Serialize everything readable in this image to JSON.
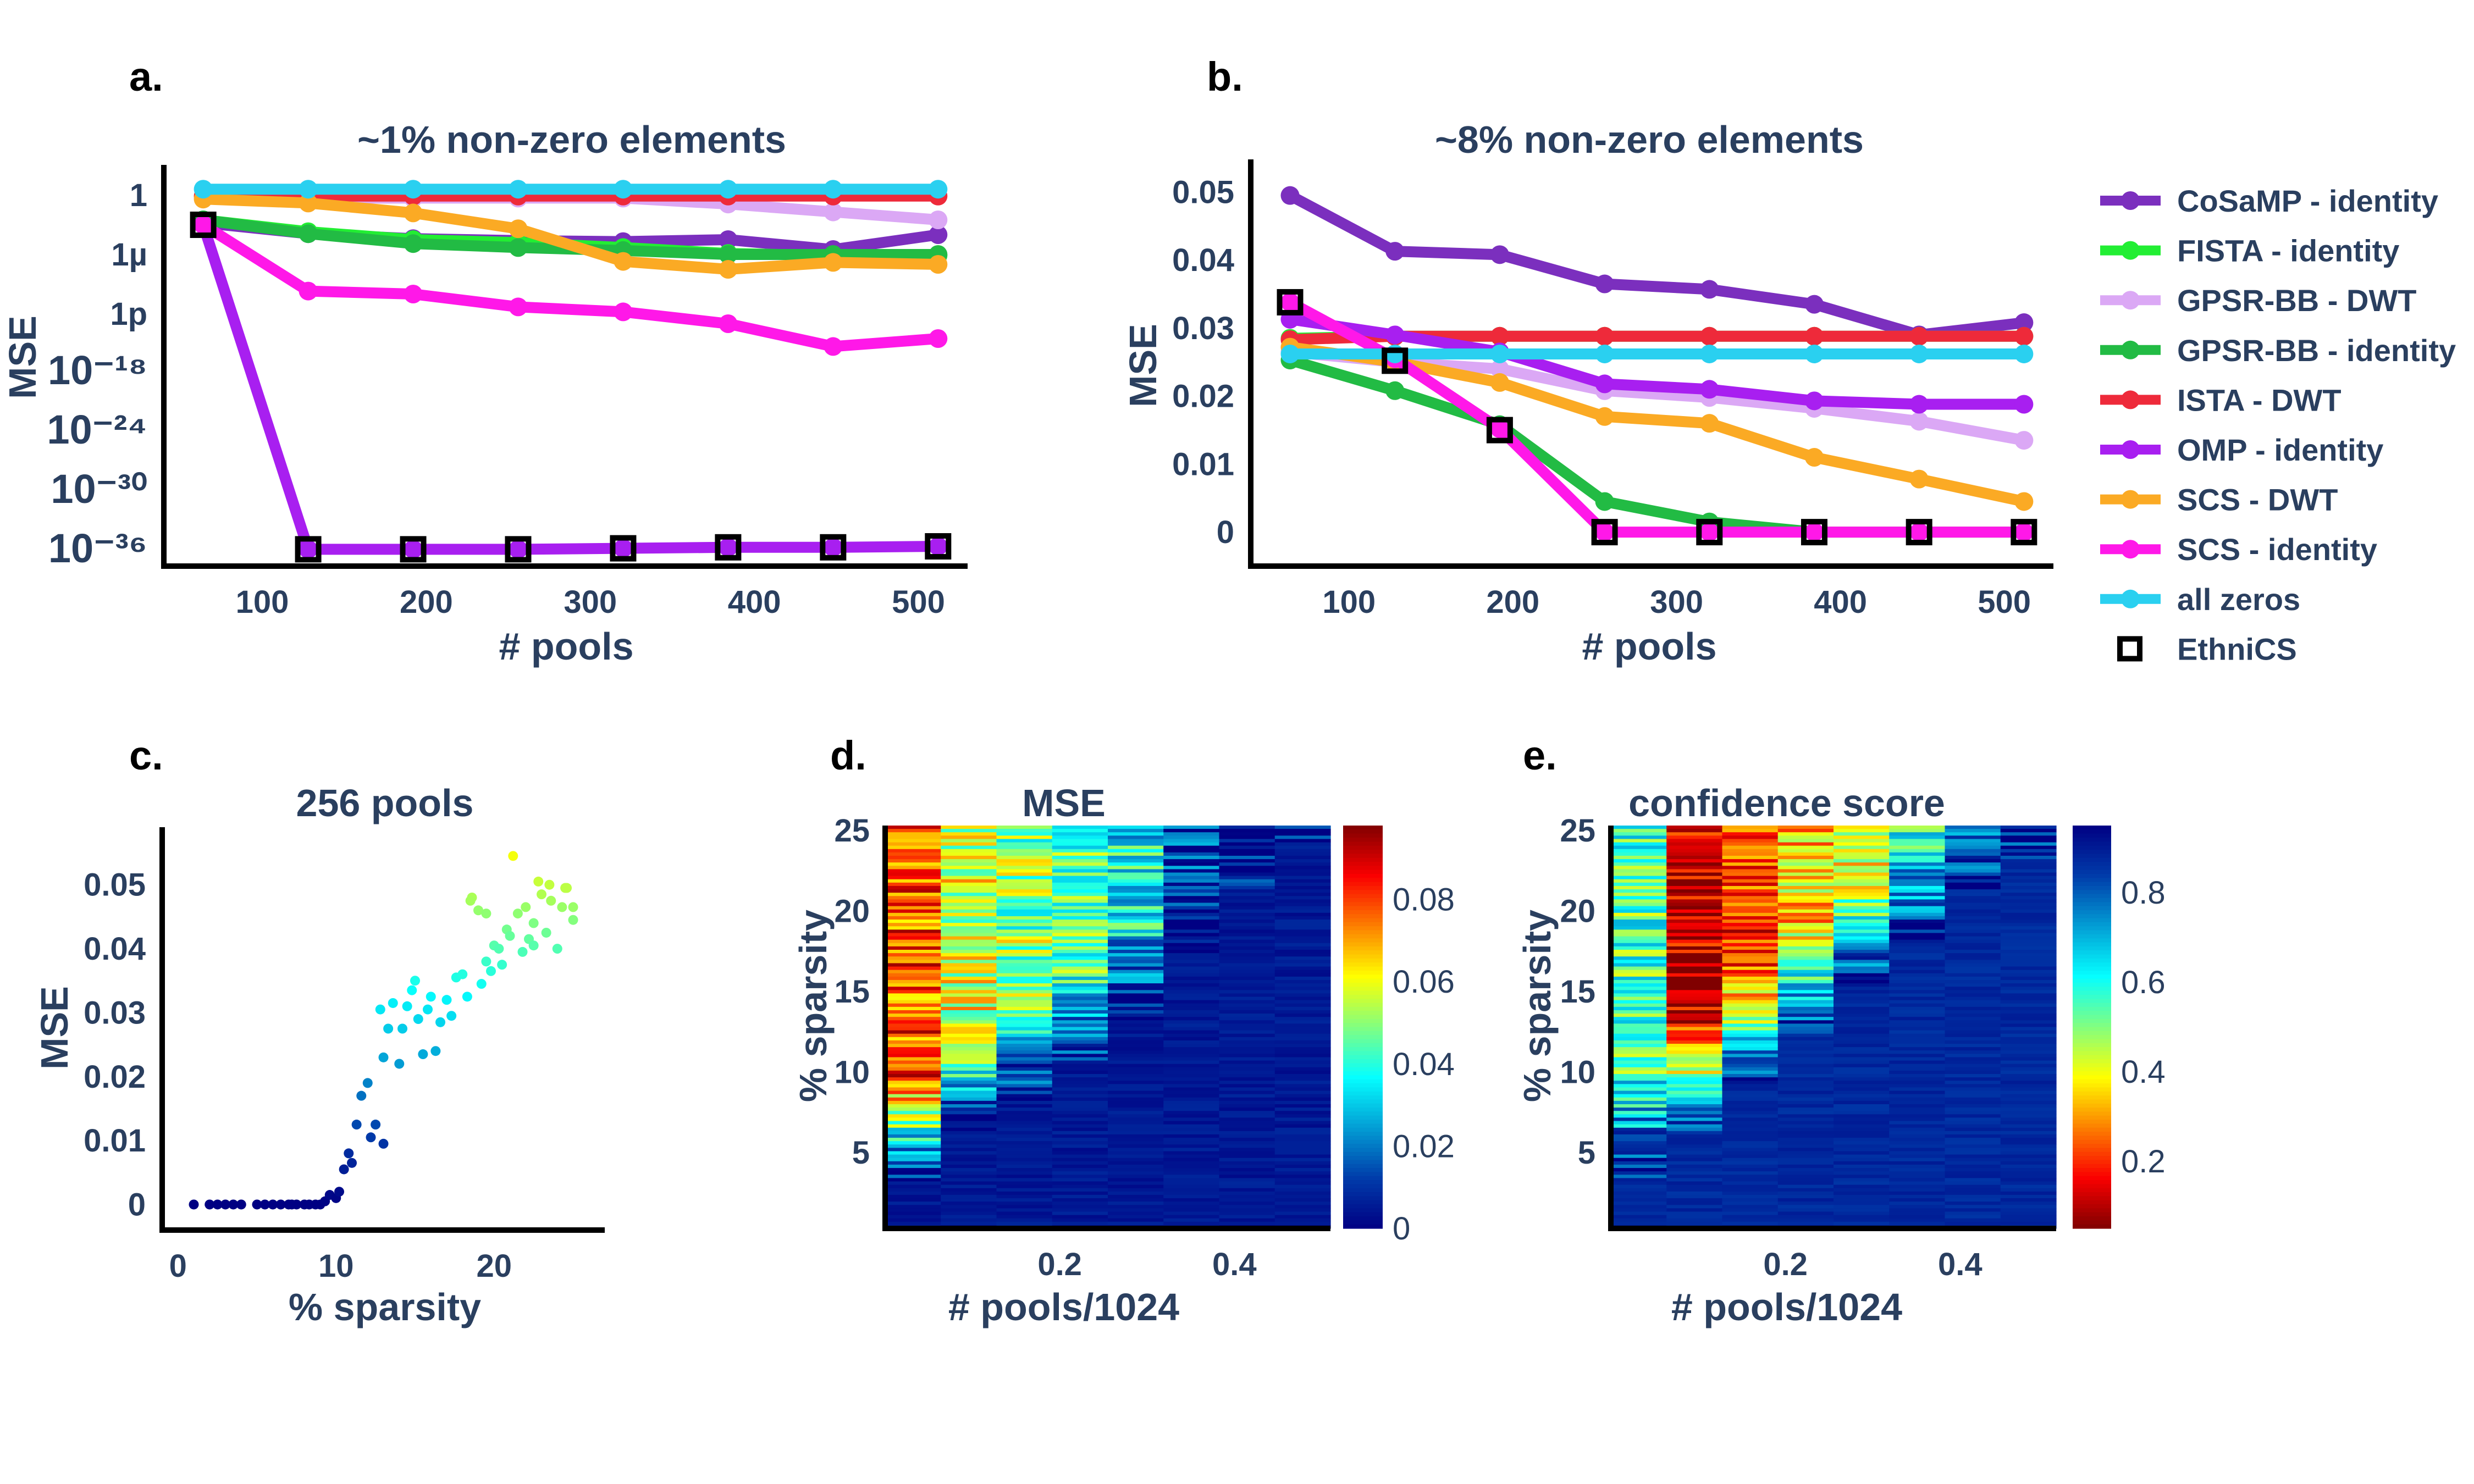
{
  "chart_data": [
    {
      "id": "a",
      "type": "line",
      "panel_label": "a.",
      "title": "~1% non-zero elements",
      "xlabel": "# pools",
      "ylabel": "MSE",
      "yscale": "log",
      "x": [
        64,
        128,
        192,
        256,
        320,
        384,
        448,
        512
      ],
      "xticks": [
        100,
        200,
        300,
        400,
        500
      ],
      "yticks_exp": [
        0,
        -6,
        -12,
        -18,
        -24,
        -30,
        -36
      ],
      "ytick_labels": [
        "1",
        "1µ",
        "1p",
        "10⁻¹⁸",
        "10⁻²⁴",
        "10⁻³⁰",
        "10⁻³⁶"
      ],
      "ylim_exp": [
        -37.5,
        2.5
      ],
      "series": [
        {
          "name": "CoSaMP - identity",
          "log10": [
            -2.8,
            -3.9,
            -4.4,
            -4.6,
            -4.7,
            -4.5,
            -5.5,
            -4.0
          ]
        },
        {
          "name": "FISTA - identity",
          "log10": [
            -2.5,
            -3.7,
            -4.5,
            -4.8,
            -5.3,
            -5.9,
            -6.1,
            -6.1
          ]
        },
        {
          "name": "GPSR-BB - DWT",
          "log10": [
            -0.3,
            -0.3,
            -0.3,
            -0.3,
            -0.3,
            -0.9,
            -1.7,
            -2.5
          ]
        },
        {
          "name": "GPSR-BB - identity",
          "log10": [
            -2.5,
            -3.9,
            -4.9,
            -5.3,
            -5.6,
            -6.0,
            -6.0,
            -6.0
          ]
        },
        {
          "name": "ISTA - DWT",
          "log10": [
            -0.1,
            -0.1,
            -0.1,
            -0.1,
            -0.1,
            -0.1,
            -0.1,
            -0.1
          ]
        },
        {
          "name": "OMP - identity",
          "log10": [
            -3.0,
            -35.8,
            -35.8,
            -35.8,
            -35.7,
            -35.6,
            -35.6,
            -35.5
          ]
        },
        {
          "name": "SCS - DWT",
          "log10": [
            -0.4,
            -0.8,
            -1.8,
            -3.4,
            -6.7,
            -7.5,
            -6.8,
            -7.0
          ]
        },
        {
          "name": "SCS - identity",
          "log10": [
            -3.0,
            -9.7,
            -10.0,
            -11.3,
            -11.8,
            -13.0,
            -15.3,
            -14.5
          ]
        },
        {
          "name": "all zeros",
          "log10": [
            0.6,
            0.6,
            0.6,
            0.6,
            0.6,
            0.6,
            0.6,
            0.6
          ]
        },
        {
          "name": "EthniCS",
          "log10": [
            -3.0,
            -35.8,
            -35.8,
            -35.8,
            -35.7,
            -35.6,
            -35.6,
            -35.5
          ]
        }
      ]
    },
    {
      "id": "b",
      "type": "line",
      "panel_label": "b.",
      "title": "~8% non-zero elements",
      "xlabel": "# pools",
      "ylabel": "MSE",
      "x": [
        64,
        128,
        192,
        256,
        320,
        384,
        448,
        512
      ],
      "xticks": [
        100,
        200,
        300,
        400,
        500
      ],
      "yticks": [
        0,
        0.01,
        0.02,
        0.03,
        0.04,
        0.05
      ],
      "ytick_labels": [
        "0",
        "0.01",
        "0.02",
        "0.03",
        "0.04",
        "0.05"
      ],
      "ylim": [
        -0.005,
        0.054
      ],
      "series": [
        {
          "name": "CoSaMP - identity",
          "values": [
            0.0495,
            0.0413,
            0.0408,
            0.0365,
            0.0357,
            0.0335,
            0.029,
            0.0308
          ]
        },
        {
          "name": "FISTA - identity",
          "values": [
            0.0285,
            0.0288,
            0.0288,
            0.0288,
            0.0288,
            0.0288,
            0.0288,
            0.0288
          ]
        },
        {
          "name": "GPSR-BB - DWT",
          "values": [
            0.0265,
            0.025,
            0.024,
            0.0208,
            0.0198,
            0.0182,
            0.0163,
            0.0135
          ]
        },
        {
          "name": "GPSR-BB - identity",
          "values": [
            0.0253,
            0.0208,
            0.0158,
            0.0045,
            0.0015,
            0.0,
            0.0,
            0.0
          ]
        },
        {
          "name": "ISTA - DWT",
          "values": [
            0.0283,
            0.0288,
            0.0288,
            0.0288,
            0.0288,
            0.0288,
            0.0288,
            0.0288
          ]
        },
        {
          "name": "OMP - identity",
          "values": [
            0.0313,
            0.029,
            0.0265,
            0.0218,
            0.021,
            0.0193,
            0.0188,
            0.0188
          ]
        },
        {
          "name": "SCS - DWT",
          "values": [
            0.0272,
            0.025,
            0.022,
            0.017,
            0.016,
            0.011,
            0.0078,
            0.0045
          ]
        },
        {
          "name": "SCS - identity",
          "values": [
            0.0338,
            0.0255,
            0.0152,
            0.0,
            0.0,
            0.0,
            0.0,
            0.0
          ]
        },
        {
          "name": "all zeros",
          "values": [
            0.0262,
            0.0262,
            0.0262,
            0.0262,
            0.0262,
            0.0262,
            0.0262,
            0.0262
          ]
        },
        {
          "name": "EthniCS",
          "values": [
            0.0338,
            0.0252,
            0.015,
            0.0,
            0.0,
            0.0,
            0.0,
            0.0
          ]
        }
      ]
    },
    {
      "id": "c",
      "type": "scatter",
      "panel_label": "c.",
      "title": "256 pools",
      "xlabel": "% sparsity",
      "ylabel": "MSE",
      "xticks": [
        0,
        10,
        20
      ],
      "yticks": [
        0,
        0.01,
        0.02,
        0.03,
        0.04,
        0.05
      ],
      "ytick_labels": [
        "0",
        "0.01",
        "0.02",
        "0.03",
        "0.04",
        "0.05"
      ],
      "xlim": [
        -1,
        27
      ],
      "ylim": [
        -0.004,
        0.059
      ],
      "x": [
        1,
        2,
        2.5,
        3,
        3.5,
        4,
        5,
        5.5,
        6,
        6.5,
        7,
        7.2,
        7.5,
        8,
        8.3,
        8.7,
        9,
        9.3,
        9.6,
        10,
        10.2,
        10.5,
        10.8,
        11,
        11.3,
        11.6,
        12,
        12.2,
        12.5,
        12.8,
        13,
        13,
        13.3,
        13.6,
        14,
        14.2,
        14.5,
        14.8,
        15,
        15.2,
        15.5,
        15.8,
        16,
        16.3,
        16.6,
        17,
        17.3,
        17.6,
        18,
        18.3,
        18.6,
        19,
        19.2,
        19.5,
        19.8,
        20,
        20.3,
        20.5,
        20.8,
        21,
        21.2,
        21.5,
        21.8,
        22,
        22.2,
        22.5,
        22.8,
        23,
        23.3,
        23.6,
        24,
        24.3,
        24.6,
        25,
        25,
        18.5,
        19.5,
        22.5,
        23.5,
        24.5
      ],
      "y": [
        0,
        0,
        0,
        0,
        0,
        0,
        0,
        0,
        0,
        0,
        0,
        0,
        0,
        0,
        0,
        0,
        0,
        0.0005,
        0.0015,
        0.001,
        0.002,
        0.0055,
        0.008,
        0.0065,
        0.0125,
        0.017,
        0.019,
        0.0105,
        0.0125,
        0.0305,
        0.023,
        0.0095,
        0.0275,
        0.0315,
        0.022,
        0.0275,
        0.031,
        0.0335,
        0.035,
        0.029,
        0.0235,
        0.0305,
        0.0325,
        0.024,
        0.0285,
        0.032,
        0.0295,
        0.0355,
        0.036,
        0.0325,
        0.048,
        0.046,
        0.0345,
        0.038,
        0.0365,
        0.0405,
        0.04,
        0.0375,
        0.043,
        0.042,
        0.0545,
        0.0455,
        0.0395,
        0.0465,
        0.0415,
        0.044,
        0.0505,
        0.0485,
        0.0425,
        0.0475,
        0.04,
        0.0465,
        0.0495,
        0.0465,
        0.0445,
        0.0475,
        0.0455,
        0.0405,
        0.05,
        0.0495
      ]
    },
    {
      "id": "d",
      "type": "heatmap",
      "panel_label": "d.",
      "title": "MSE",
      "xlabel": "# pools/1024",
      "ylabel": "% sparsity",
      "xticks": [
        0.2,
        0.4
      ],
      "yticks": [
        5,
        10,
        15,
        20,
        25
      ],
      "xlim": [
        0,
        0.51
      ],
      "ylim": [
        0.3,
        25.3
      ],
      "colorscale": "jet",
      "zlim": [
        0,
        0.098
      ],
      "colorbar_ticks": [
        0,
        0.02,
        0.04,
        0.06,
        0.08
      ],
      "colorbar_labels": [
        "0",
        "0.02",
        "0.04",
        "0.06",
        "0.08"
      ],
      "columns": 8
    },
    {
      "id": "e",
      "type": "heatmap",
      "panel_label": "e.",
      "title": "confidence score",
      "xlabel": "# pools/1024",
      "ylabel": "% sparsity",
      "xticks": [
        0.2,
        0.4
      ],
      "yticks": [
        5,
        10,
        15,
        20,
        25
      ],
      "xlim": [
        0,
        0.51
      ],
      "ylim": [
        0.3,
        25.3
      ],
      "colorscale": "jet_reversed",
      "zlim": [
        0.05,
        0.95
      ],
      "colorbar_ticks": [
        0.2,
        0.4,
        0.6,
        0.8
      ],
      "colorbar_labels": [
        "0.2",
        "0.4",
        "0.6",
        "0.8"
      ],
      "columns": 8
    }
  ],
  "legend": {
    "items": [
      {
        "name": "CoSaMP - identity",
        "color": "#7b2fbe",
        "marker": "circle"
      },
      {
        "name": "FISTA - identity",
        "color": "#22ee33",
        "marker": "circle"
      },
      {
        "name": "GPSR-BB - DWT",
        "color": "#dba8f5",
        "marker": "circle"
      },
      {
        "name": "GPSR-BB - identity",
        "color": "#22bb44",
        "marker": "circle"
      },
      {
        "name": "ISTA - DWT",
        "color": "#ee2a3a",
        "marker": "circle"
      },
      {
        "name": "OMP - identity",
        "color": "#a81ff0",
        "marker": "circle"
      },
      {
        "name": "SCS - DWT",
        "color": "#fbaa24",
        "marker": "circle"
      },
      {
        "name": "SCS - identity",
        "color": "#ff18e8",
        "marker": "circle"
      },
      {
        "name": "all zeros",
        "color": "#2ad0f0",
        "marker": "circle"
      },
      {
        "name": "EthniCS",
        "color": "#000000",
        "marker": "open-square"
      }
    ]
  }
}
